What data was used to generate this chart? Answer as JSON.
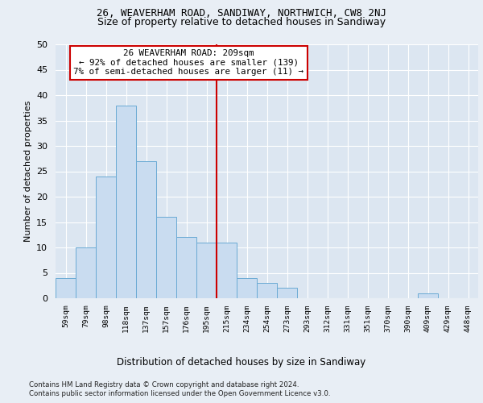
{
  "title": "26, WEAVERHAM ROAD, SANDIWAY, NORTHWICH, CW8 2NJ",
  "subtitle": "Size of property relative to detached houses in Sandiway",
  "xlabel": "Distribution of detached houses by size in Sandiway",
  "ylabel": "Number of detached properties",
  "bar_labels": [
    "59sqm",
    "79sqm",
    "98sqm",
    "118sqm",
    "137sqm",
    "157sqm",
    "176sqm",
    "195sqm",
    "215sqm",
    "234sqm",
    "254sqm",
    "273sqm",
    "293sqm",
    "312sqm",
    "331sqm",
    "351sqm",
    "370sqm",
    "390sqm",
    "409sqm",
    "429sqm",
    "448sqm"
  ],
  "bar_values": [
    4,
    10,
    24,
    38,
    27,
    16,
    12,
    11,
    11,
    4,
    3,
    2,
    0,
    0,
    0,
    0,
    0,
    0,
    1,
    0,
    0
  ],
  "bar_color": "#c9dcf0",
  "bar_edge_color": "#6aaad4",
  "vline_color": "#cc0000",
  "annotation_text": "26 WEAVERHAM ROAD: 209sqm\n← 92% of detached houses are smaller (139)\n7% of semi-detached houses are larger (11) →",
  "annotation_box_color": "#cc0000",
  "ylim": [
    0,
    50
  ],
  "yticks": [
    0,
    5,
    10,
    15,
    20,
    25,
    30,
    35,
    40,
    45,
    50
  ],
  "footer_line1": "Contains HM Land Registry data © Crown copyright and database right 2024.",
  "footer_line2": "Contains public sector information licensed under the Open Government Licence v3.0.",
  "background_color": "#e8eef5",
  "plot_background": "#dce6f1",
  "title_fontsize": 9,
  "subtitle_fontsize": 9
}
